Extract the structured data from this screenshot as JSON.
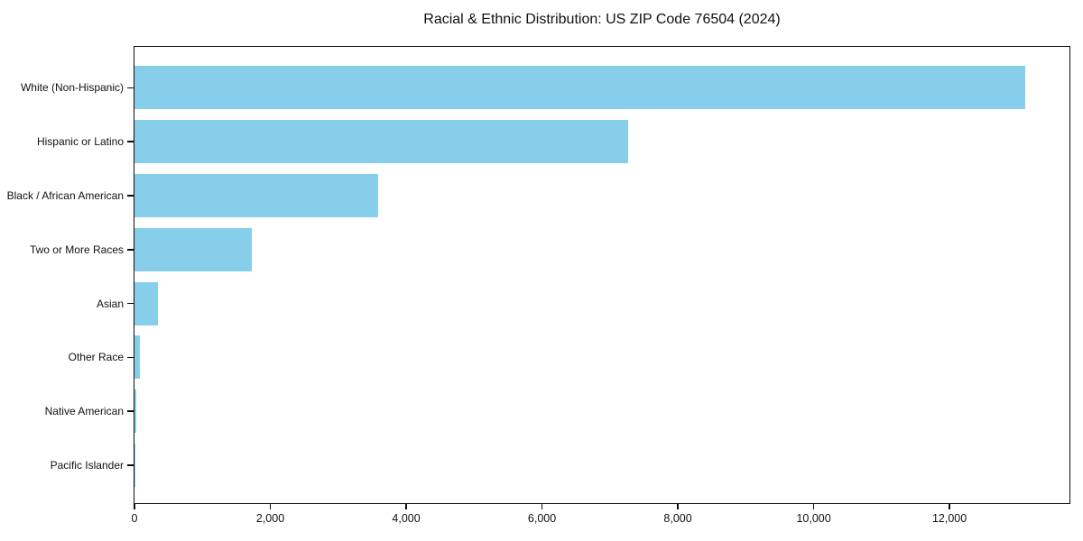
{
  "chart_data": {
    "type": "bar",
    "orientation": "horizontal",
    "title": "Racial & Ethnic Distribution: US ZIP Code 76504 (2024)",
    "categories": [
      "White (Non-Hispanic)",
      "Hispanic or Latino",
      "Black / African American",
      "Two or More Races",
      "Asian",
      "Other Race",
      "Native American",
      "Pacific Islander"
    ],
    "values": [
      13110,
      7270,
      3590,
      1730,
      350,
      80,
      30,
      15
    ],
    "bar_color": "#87CEEB",
    "xlabel": "",
    "ylabel": "",
    "xlim": [
      0,
      13766
    ],
    "x_ticks": [
      0,
      2000,
      4000,
      6000,
      8000,
      10000,
      12000
    ],
    "x_tick_labels": [
      "0",
      "2,000",
      "4,000",
      "6,000",
      "8,000",
      "10,000",
      "12,000"
    ],
    "grid": false,
    "legend": null,
    "background_color": "#ffffff",
    "text_color": "#111111"
  }
}
